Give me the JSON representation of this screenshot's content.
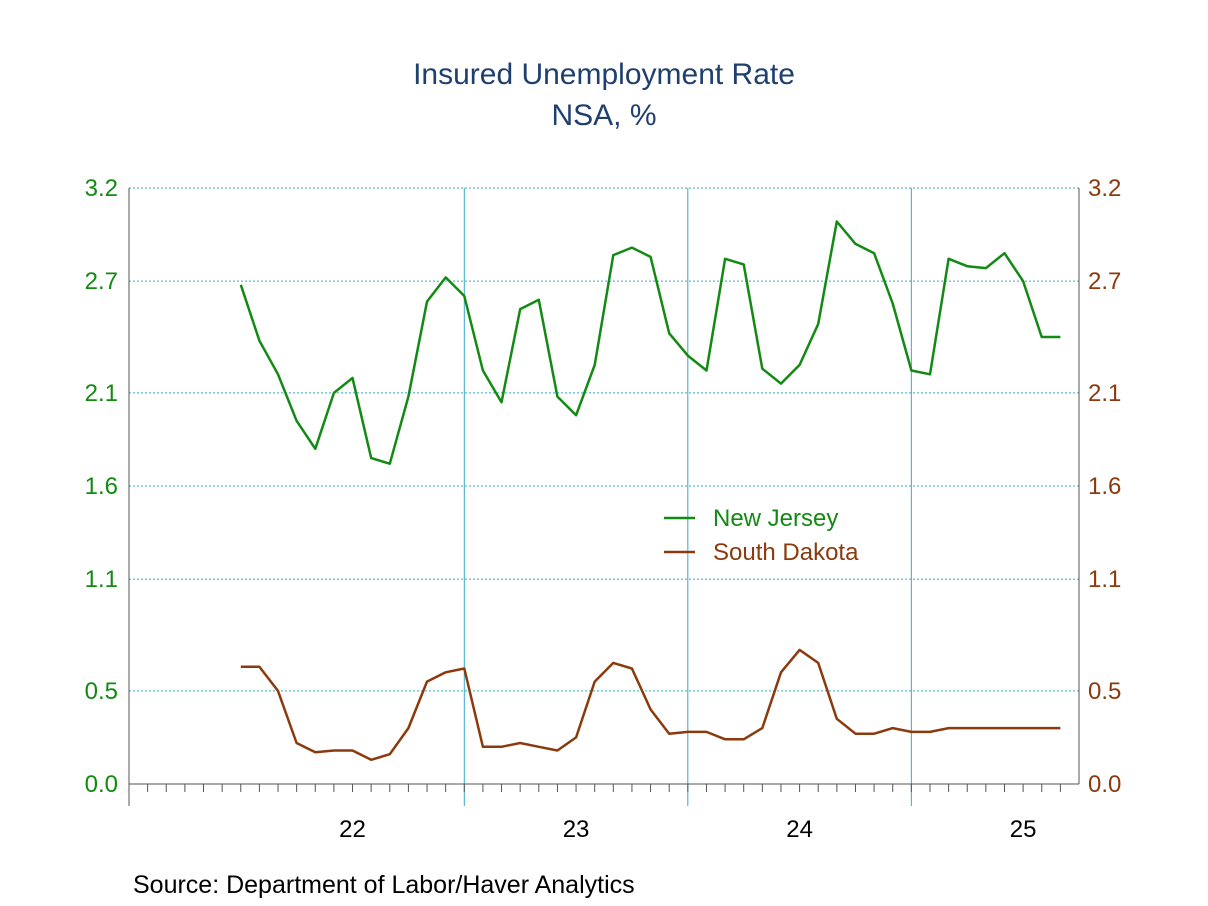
{
  "chart_data": {
    "type": "line",
    "title": "Insured Unemployment Rate",
    "subtitle": "NSA, %",
    "source": "Source:  Department of Labor/Haver Analytics",
    "y_left": {
      "ticks": [
        "0.0",
        "0.5",
        "1.1",
        "1.6",
        "2.1",
        "2.7",
        "3.2"
      ],
      "range": [
        0.0,
        3.2
      ]
    },
    "y_right": {
      "ticks": [
        "0.0",
        "0.5",
        "1.1",
        "1.6",
        "2.1",
        "2.7",
        "3.2"
      ],
      "range": [
        0.0,
        3.2
      ]
    },
    "x_axis": {
      "range": [
        "2021-07",
        "2025-10"
      ],
      "tick_labels": [
        "22",
        "23",
        "24",
        "25"
      ],
      "tick_label_positions": [
        "2022-07",
        "2023-07",
        "2024-07",
        "2025-07"
      ],
      "year_boundaries": [
        "2023-01",
        "2024-01",
        "2025-01"
      ]
    },
    "grid": true,
    "legend": {
      "placement": "center-right"
    },
    "series": [
      {
        "name": "New Jersey",
        "color": "#138a13",
        "axis": "left",
        "x": [
          "2022-01-01",
          "2022-02-01",
          "2022-03-01",
          "2022-04-01",
          "2022-05-01",
          "2022-06-01",
          "2022-07-01",
          "2022-08-01",
          "2022-09-01",
          "2022-10-01",
          "2022-11-01",
          "2022-12-01",
          "2023-01-01",
          "2023-02-01",
          "2023-03-01",
          "2023-04-01",
          "2023-05-01",
          "2023-06-01",
          "2023-07-01",
          "2023-08-01",
          "2023-09-01",
          "2023-10-01",
          "2023-11-01",
          "2023-12-01",
          "2024-01-01",
          "2024-02-01",
          "2024-03-01",
          "2024-04-01",
          "2024-05-01",
          "2024-06-01",
          "2024-07-01",
          "2024-08-01",
          "2024-09-01",
          "2024-10-01",
          "2024-11-01",
          "2024-12-01",
          "2025-01-01",
          "2025-02-01",
          "2025-03-01",
          "2025-04-01",
          "2025-05-01",
          "2025-06-01",
          "2025-07-01",
          "2025-08-01",
          "2025-09-01"
        ],
        "values": [
          2.68,
          2.38,
          2.2,
          1.95,
          1.8,
          2.1,
          2.18,
          1.75,
          1.72,
          2.08,
          2.59,
          2.72,
          2.62,
          2.22,
          2.05,
          2.55,
          2.6,
          2.08,
          1.98,
          2.25,
          2.84,
          2.88,
          2.83,
          2.42,
          2.3,
          2.22,
          2.82,
          2.79,
          2.23,
          2.15,
          2.25,
          2.47,
          3.02,
          2.9,
          2.85,
          2.58,
          2.22,
          2.2,
          2.82,
          2.78,
          2.77,
          2.85,
          2.7,
          2.4,
          2.4
        ]
      },
      {
        "name": "South Dakota",
        "color": "#8b3a0e",
        "axis": "right",
        "x": [
          "2022-01-01",
          "2022-02-01",
          "2022-03-01",
          "2022-04-01",
          "2022-05-01",
          "2022-06-01",
          "2022-07-01",
          "2022-08-01",
          "2022-09-01",
          "2022-10-01",
          "2022-11-01",
          "2022-12-01",
          "2023-01-01",
          "2023-02-01",
          "2023-03-01",
          "2023-04-01",
          "2023-05-01",
          "2023-06-01",
          "2023-07-01",
          "2023-08-01",
          "2023-09-01",
          "2023-10-01",
          "2023-11-01",
          "2023-12-01",
          "2024-01-01",
          "2024-02-01",
          "2024-03-01",
          "2024-04-01",
          "2024-05-01",
          "2024-06-01",
          "2024-07-01",
          "2024-08-01",
          "2024-09-01",
          "2024-10-01",
          "2024-11-01",
          "2024-12-01",
          "2025-01-01",
          "2025-02-01",
          "2025-03-01",
          "2025-04-01",
          "2025-05-01",
          "2025-06-01",
          "2025-07-01",
          "2025-08-01",
          "2025-09-01"
        ],
        "values": [
          0.63,
          0.63,
          0.5,
          0.22,
          0.17,
          0.18,
          0.18,
          0.13,
          0.16,
          0.3,
          0.55,
          0.6,
          0.62,
          0.2,
          0.2,
          0.22,
          0.2,
          0.18,
          0.25,
          0.55,
          0.65,
          0.62,
          0.4,
          0.27,
          0.28,
          0.28,
          0.24,
          0.24,
          0.3,
          0.6,
          0.72,
          0.65,
          0.35,
          0.27,
          0.27,
          0.3,
          0.28,
          0.28,
          0.3,
          0.3,
          0.3,
          0.3,
          0.3,
          0.3,
          0.3
        ]
      }
    ]
  }
}
